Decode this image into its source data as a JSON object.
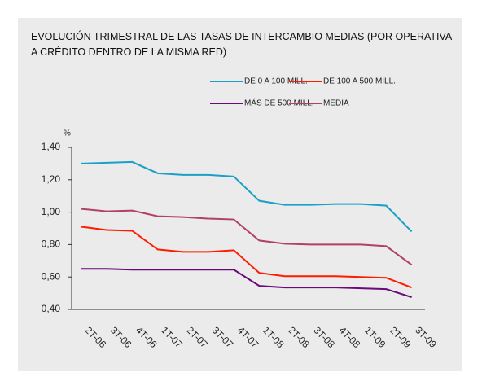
{
  "chart_data": {
    "type": "line",
    "title": "EVOLUCIÓN TRIMESTRAL DE LAS TASAS DE INTERCAMBIO MEDIAS (POR OPERATIVA A CRÉDITO DENTRO DE LA MISMA RED)",
    "y_label": "%",
    "categories": [
      "2T-06",
      "3T-06",
      "4T-06",
      "1T-07",
      "2T-07",
      "3T-07",
      "4T-07",
      "1T-08",
      "2T-08",
      "3T-08",
      "4T-08",
      "1T-09",
      "2T-09",
      "3T-09"
    ],
    "series": [
      {
        "name": "DE 0 A 100 MILL.",
        "color": "#1aa0c8",
        "values": [
          1.3,
          1.305,
          1.31,
          1.24,
          1.23,
          1.23,
          1.22,
          1.07,
          1.045,
          1.045,
          1.05,
          1.05,
          1.04,
          0.88
        ]
      },
      {
        "name": "DE 100 A 500 MILL.",
        "color": "#ff1a00",
        "values": [
          0.91,
          0.89,
          0.885,
          0.77,
          0.755,
          0.755,
          0.765,
          0.625,
          0.605,
          0.605,
          0.605,
          0.6,
          0.595,
          0.535
        ]
      },
      {
        "name": "MÁS DE 500 MILL.",
        "color": "#6a0a7a",
        "values": [
          0.65,
          0.65,
          0.645,
          0.645,
          0.645,
          0.645,
          0.645,
          0.545,
          0.535,
          0.535,
          0.535,
          0.53,
          0.525,
          0.475
        ]
      },
      {
        "name": "MEDIA",
        "color": "#b0406a",
        "values": [
          1.02,
          1.005,
          1.01,
          0.975,
          0.97,
          0.96,
          0.955,
          0.825,
          0.805,
          0.8,
          0.8,
          0.8,
          0.79,
          0.675
        ]
      }
    ],
    "ylim": [
      0.4,
      1.4
    ],
    "yticks": [
      {
        "value": 0.4,
        "label": "0,40"
      },
      {
        "value": 0.6,
        "label": "0,60"
      },
      {
        "value": 0.8,
        "label": "0,80"
      },
      {
        "value": 1.0,
        "label": "1,00"
      },
      {
        "value": 1.2,
        "label": "1,20"
      },
      {
        "value": 1.4,
        "label": "1,40"
      }
    ],
    "grid": false
  }
}
